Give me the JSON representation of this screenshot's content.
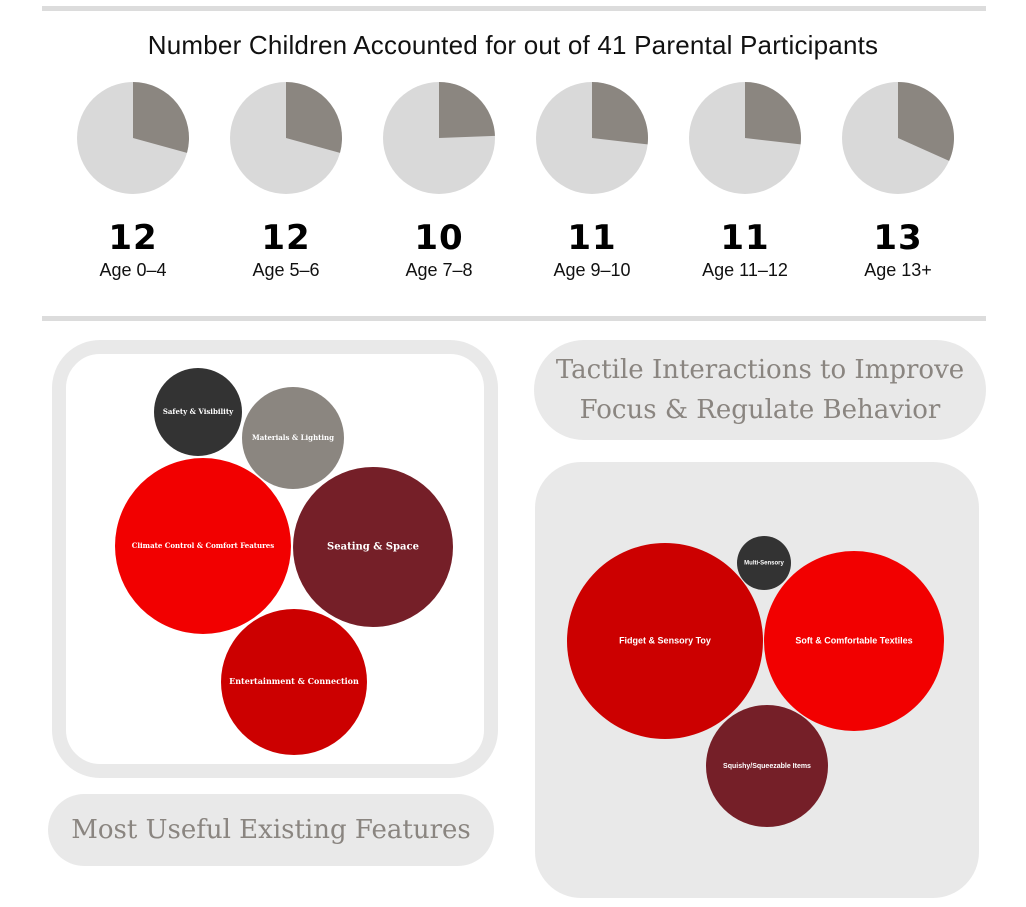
{
  "chart_data": [
    {
      "type": "pie",
      "title": "Number Children Accounted for out of 41 Parental Participants",
      "total": 41,
      "colors": {
        "part": "#8b8680",
        "rest": "#d9d9d9"
      },
      "slices": [
        {
          "label": "Age 0–4",
          "value": 12
        },
        {
          "label": "Age 5–6",
          "value": 12
        },
        {
          "label": "Age 7–8",
          "value": 10
        },
        {
          "label": "Age 9–10",
          "value": 11
        },
        {
          "label": "Age 11–12",
          "value": 11
        },
        {
          "label": "Age 13+",
          "value": 13
        }
      ]
    },
    {
      "type": "bubble",
      "title": "Most Useful Existing Features",
      "bubbles": [
        {
          "label": "Safety & Visibility",
          "size": 55,
          "color": "#333333"
        },
        {
          "label": "Materials & Lighting",
          "size": 100,
          "color": "#8b8680"
        },
        {
          "label": "Climate Control & Comfort Features",
          "size": 440,
          "color": "#f20000"
        },
        {
          "label": "Seating & Space",
          "size": 300,
          "color": "#751f28"
        },
        {
          "label": "Entertainment & Connection",
          "size": 210,
          "color": "#cc0000"
        }
      ]
    },
    {
      "type": "bubble",
      "title": "Tactile Interactions to Improve Focus & Regulate Behavior",
      "bubbles": [
        {
          "label": "Multi-Sensory",
          "size": 10,
          "color": "#333333"
        },
        {
          "label": "Fidget & Sensory Toy",
          "size": 340,
          "color": "#cc0000"
        },
        {
          "label": "Soft & Comfortable Textiles",
          "size": 290,
          "color": "#f20000"
        },
        {
          "label": "Squishy/Squeezable Items",
          "size": 130,
          "color": "#751f28"
        }
      ]
    }
  ]
}
